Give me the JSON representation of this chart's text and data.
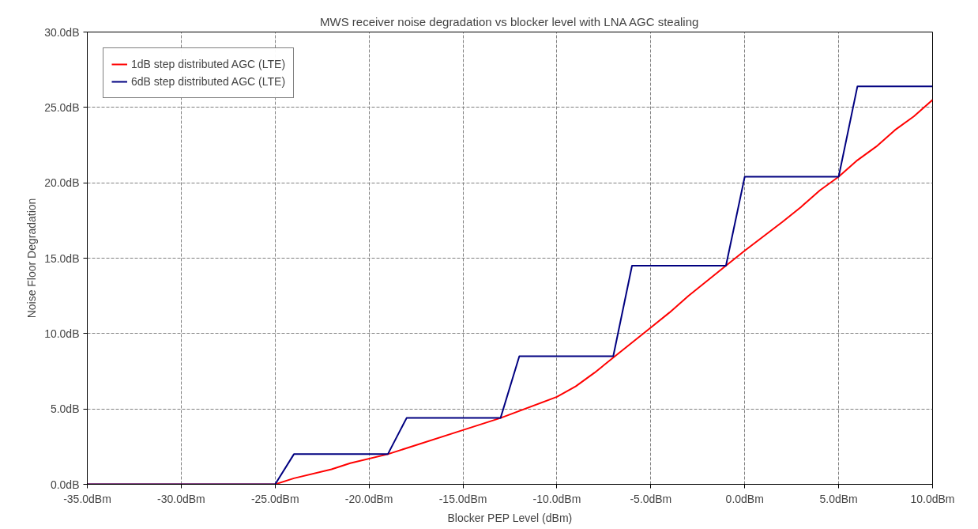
{
  "chart_data": {
    "type": "line",
    "title": "MWS receiver noise degradation vs blocker level with LNA AGC stealing",
    "xlabel": "Blocker PEP Level (dBm)",
    "ylabel": "Noise Floor Degradation",
    "series": [
      {
        "name": "1dB step distributed AGC (LTE)",
        "color": "#ff0000",
        "x": [
          -35,
          -25,
          -24,
          -22,
          -21,
          -19,
          -18,
          -15,
          -13,
          -10,
          -9,
          -8,
          -7,
          -5,
          -4,
          -3,
          -1,
          0,
          2,
          3,
          4,
          5,
          6,
          7,
          8,
          9,
          10
        ],
        "values": [
          0,
          0,
          0.4,
          1.0,
          1.4,
          2.0,
          2.4,
          3.6,
          4.4,
          5.8,
          6.5,
          7.4,
          8.4,
          10.4,
          11.4,
          12.5,
          14.5,
          15.5,
          17.4,
          18.4,
          19.5,
          20.4,
          21.5,
          22.4,
          23.5,
          24.4,
          25.5
        ]
      },
      {
        "name": "6dB step distributed AGC (LTE)",
        "color": "#000080",
        "x": [
          -35,
          -25,
          -24,
          -19,
          -18,
          -13,
          -12,
          -7,
          -6,
          -1,
          0,
          5,
          6,
          10
        ],
        "values": [
          0,
          0,
          2.0,
          2.0,
          4.4,
          4.4,
          8.5,
          8.5,
          14.5,
          14.5,
          20.4,
          20.4,
          26.4,
          26.4
        ]
      }
    ],
    "xlim": [
      -35,
      10
    ],
    "ylim": [
      0,
      30
    ],
    "xticks": [
      {
        "value": -35,
        "label": "-35.0dBm"
      },
      {
        "value": -30,
        "label": "-30.0dBm"
      },
      {
        "value": -25,
        "label": "-25.0dBm"
      },
      {
        "value": -20,
        "label": "-20.0dBm"
      },
      {
        "value": -15,
        "label": "-15.0dBm"
      },
      {
        "value": -10,
        "label": "-10.0dBm"
      },
      {
        "value": -5,
        "label": "-5.0dBm"
      },
      {
        "value": 0,
        "label": "0.0dBm"
      },
      {
        "value": 5,
        "label": "5.0dBm"
      },
      {
        "value": 10,
        "label": "10.0dBm"
      }
    ],
    "yticks": [
      {
        "value": 0,
        "label": "0.0dB"
      },
      {
        "value": 5,
        "label": "5.0dB"
      },
      {
        "value": 10,
        "label": "10.0dB"
      },
      {
        "value": 15,
        "label": "15.0dB"
      },
      {
        "value": 20,
        "label": "20.0dB"
      },
      {
        "value": 25,
        "label": "25.0dB"
      },
      {
        "value": 30,
        "label": "30.0dB"
      }
    ],
    "grid": true,
    "legend": "top left",
    "marker": "none",
    "line_style": "solid"
  }
}
